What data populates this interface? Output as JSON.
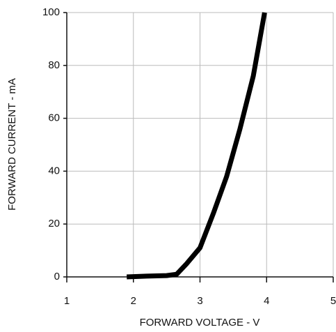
{
  "chart_data": {
    "type": "line",
    "xlabel": "FORWARD VOLTAGE - V",
    "ylabel": "FORWARD CURRENT - mA",
    "x": [
      1.9,
      2.2,
      2.5,
      2.65,
      2.8,
      3.0,
      3.2,
      3.4,
      3.6,
      3.8,
      3.97
    ],
    "series": [
      {
        "name": "Forward current",
        "color": "#000000",
        "values": [
          0,
          0.3,
          0.5,
          1,
          5,
          11,
          24,
          38,
          56,
          76,
          100
        ]
      }
    ],
    "xlim": [
      1,
      5
    ],
    "xticks": [
      1,
      2,
      3,
      4,
      5
    ],
    "ylim": [
      0,
      100
    ],
    "yticks": [
      0,
      20,
      40,
      60,
      80,
      100
    ],
    "grid": true
  }
}
